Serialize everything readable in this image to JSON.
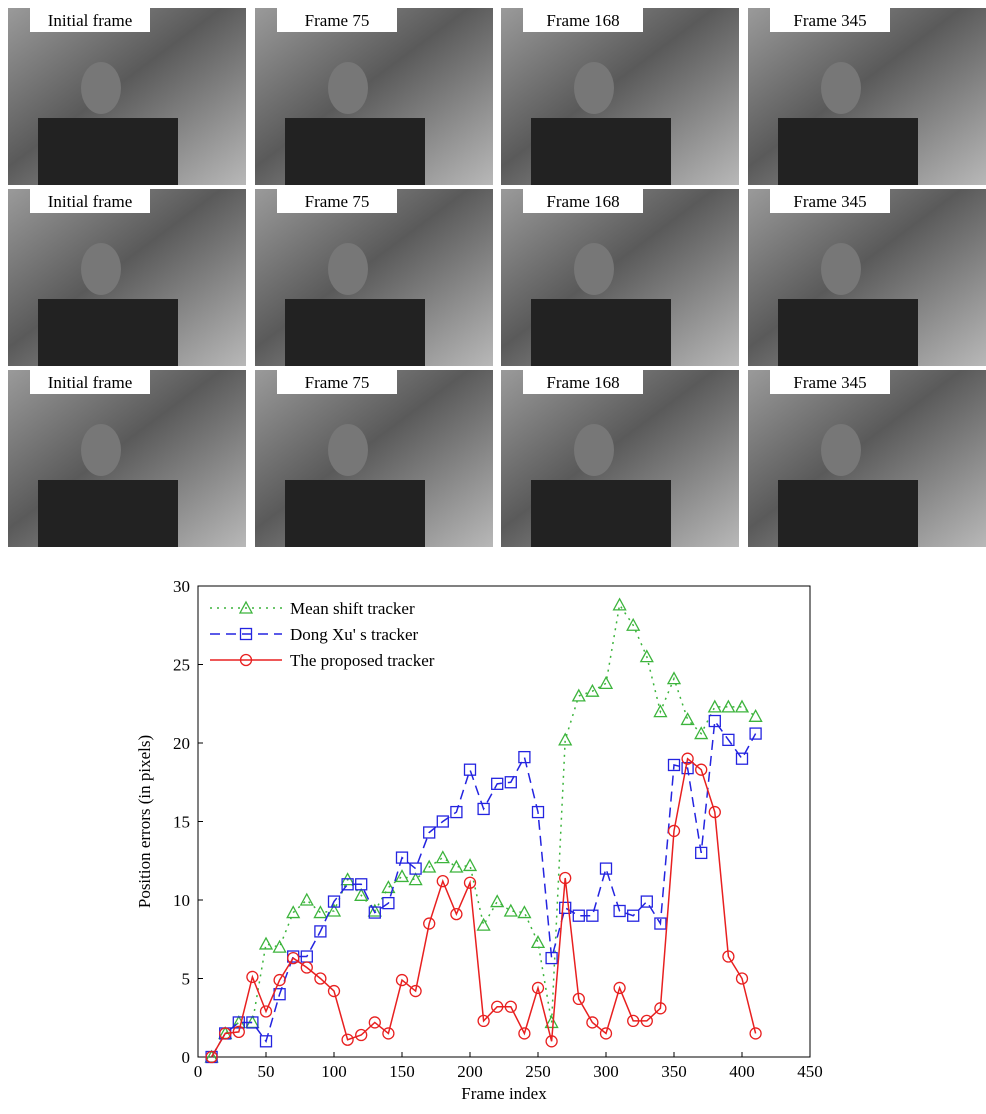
{
  "panels": {
    "rows": [
      [
        "Initial frame",
        "Frame 75",
        "Frame 168",
        "Frame 345"
      ],
      [
        "Initial frame",
        "Frame 75",
        "Frame 168",
        "Frame 345"
      ],
      [
        "Initial frame",
        "Frame 75",
        "Frame 168",
        "Frame 345"
      ]
    ]
  },
  "chart_data": {
    "type": "line",
    "xlabel": "Frame index",
    "ylabel": "Position errors (in pixels)",
    "x": [
      10,
      20,
      30,
      40,
      50,
      60,
      70,
      80,
      90,
      100,
      110,
      120,
      130,
      140,
      150,
      160,
      170,
      180,
      190,
      200,
      210,
      220,
      230,
      240,
      250,
      260,
      270,
      280,
      290,
      300,
      310,
      320,
      330,
      340,
      350,
      360,
      370,
      380,
      390,
      400,
      410
    ],
    "series": [
      {
        "name": "Mean shift tracker",
        "color": "#3cb43c",
        "marker": "triangle",
        "linestyle": "dotted",
        "values": [
          0,
          1.5,
          2.2,
          2.2,
          7.2,
          7,
          9.2,
          10,
          9.2,
          9.3,
          11.3,
          10.3,
          9.3,
          10.8,
          11.5,
          11.3,
          12.1,
          12.7,
          12.1,
          12.2,
          8.4,
          9.9,
          9.3,
          9.2,
          7.3,
          2.2,
          20.2,
          23,
          23.3,
          23.8,
          28.8,
          27.5,
          25.5,
          22,
          24.1,
          21.5,
          20.6,
          22.3,
          22.3,
          22.3,
          21.7
        ]
      },
      {
        "name": "Dong Xu' s tracker",
        "color": "#2424e0",
        "marker": "square",
        "linestyle": "dashed",
        "values": [
          0,
          1.5,
          2.2,
          2.2,
          1,
          4,
          6.4,
          6.4,
          8,
          9.9,
          11,
          11,
          9.2,
          9.8,
          12.7,
          12,
          14.3,
          15,
          15.6,
          18.3,
          15.8,
          17.4,
          17.5,
          19.1,
          15.6,
          6.3,
          9.5,
          9,
          9,
          12,
          9.3,
          9,
          9.9,
          8.5,
          18.6,
          18.4,
          13,
          21.4,
          20.2,
          19,
          20.6
        ]
      },
      {
        "name": "The proposed tracker",
        "color": "#e82020",
        "marker": "circle",
        "linestyle": "solid",
        "values": [
          0,
          1.5,
          1.6,
          5.1,
          2.9,
          4.9,
          6.3,
          5.7,
          5,
          4.2,
          1.1,
          1.4,
          2.2,
          1.5,
          4.9,
          4.2,
          8.5,
          11.2,
          9.1,
          11.1,
          2.3,
          3.2,
          3.2,
          1.5,
          4.4,
          1,
          11.4,
          3.7,
          2.2,
          1.5,
          4.4,
          2.3,
          2.3,
          3.1,
          14.4,
          19,
          18.3,
          15.6,
          6.4,
          5,
          1.5
        ]
      }
    ],
    "xlim": [
      0,
      450
    ],
    "xticks": [
      0,
      50,
      100,
      150,
      200,
      250,
      300,
      350,
      400,
      450
    ],
    "ylim": [
      0,
      30
    ],
    "yticks": [
      0,
      5,
      10,
      15,
      20,
      25,
      30
    ],
    "legend": "upper-left"
  }
}
